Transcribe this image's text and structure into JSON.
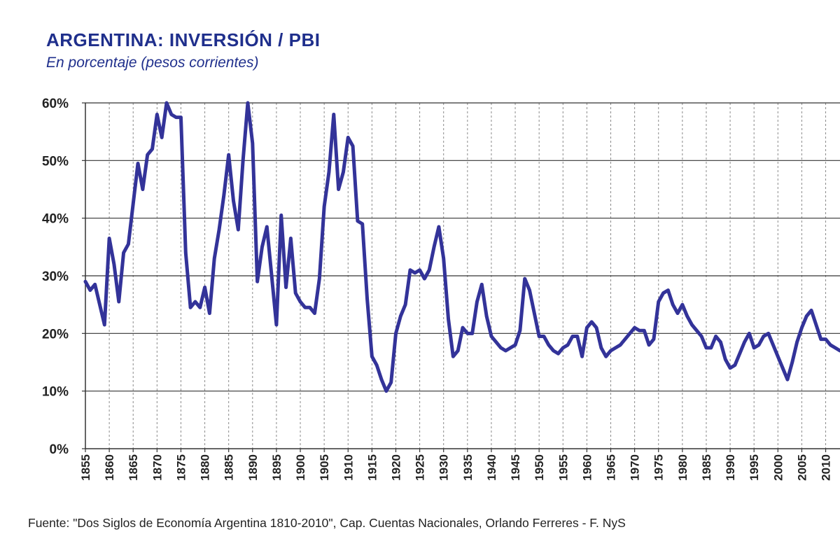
{
  "chart_data": {
    "type": "line",
    "title": "ARGENTINA: INVERSIÓN / PBI",
    "subtitle": "En porcentaje (pesos corrientes)",
    "xlabel": "",
    "ylabel": "",
    "ylim": [
      0,
      60
    ],
    "xlim": [
      1855,
      2013
    ],
    "grid": true,
    "y_ticks": [
      "0%",
      "10%",
      "20%",
      "30%",
      "40%",
      "50%",
      "60%"
    ],
    "x_ticks": [
      "1855",
      "1860",
      "1865",
      "1870",
      "1875",
      "1880",
      "1885",
      "1890",
      "1895",
      "1900",
      "1905",
      "1910",
      "1915",
      "1920",
      "1925",
      "1930",
      "1935",
      "1940",
      "1945",
      "1950",
      "1955",
      "1960",
      "1965",
      "1970",
      "1975",
      "1980",
      "1985",
      "1990",
      "1995",
      "2000",
      "2005",
      "2010"
    ],
    "series": [
      {
        "name": "Inversión / PBI",
        "color": "#333399",
        "x": [
          1855,
          1856,
          1857,
          1858,
          1859,
          1860,
          1861,
          1862,
          1863,
          1864,
          1865,
          1866,
          1867,
          1868,
          1869,
          1870,
          1871,
          1872,
          1873,
          1874,
          1875,
          1876,
          1877,
          1878,
          1879,
          1880,
          1881,
          1882,
          1883,
          1884,
          1885,
          1886,
          1887,
          1888,
          1889,
          1890,
          1891,
          1892,
          1893,
          1894,
          1895,
          1896,
          1897,
          1898,
          1899,
          1900,
          1901,
          1902,
          1903,
          1904,
          1905,
          1906,
          1907,
          1908,
          1909,
          1910,
          1911,
          1912,
          1913,
          1914,
          1915,
          1916,
          1917,
          1918,
          1919,
          1920,
          1921,
          1922,
          1923,
          1924,
          1925,
          1926,
          1927,
          1928,
          1929,
          1930,
          1931,
          1932,
          1933,
          1934,
          1935,
          1936,
          1937,
          1938,
          1939,
          1940,
          1941,
          1942,
          1943,
          1944,
          1945,
          1946,
          1947,
          1948,
          1949,
          1950,
          1951,
          1952,
          1953,
          1954,
          1955,
          1956,
          1957,
          1958,
          1959,
          1960,
          1961,
          1962,
          1963,
          1964,
          1965,
          1966,
          1967,
          1968,
          1969,
          1970,
          1971,
          1972,
          1973,
          1974,
          1975,
          1976,
          1977,
          1978,
          1979,
          1980,
          1981,
          1982,
          1983,
          1984,
          1985,
          1986,
          1987,
          1988,
          1989,
          1990,
          1991,
          1992,
          1993,
          1994,
          1995,
          1996,
          1997,
          1998,
          1999,
          2000,
          2001,
          2002,
          2003,
          2004,
          2005,
          2006,
          2007,
          2008,
          2009,
          2010,
          2011,
          2012,
          2013
        ],
        "values": [
          29.0,
          27.5,
          28.5,
          25.0,
          21.5,
          36.5,
          32.0,
          25.5,
          34.0,
          35.5,
          42.5,
          49.5,
          45.0,
          51.0,
          52.0,
          58.0,
          54.0,
          60.0,
          58.0,
          57.5,
          57.5,
          34.0,
          24.5,
          25.5,
          24.5,
          28.0,
          23.5,
          33.0,
          38.0,
          44.0,
          51.0,
          43.0,
          38.0,
          50.0,
          60.0,
          53.0,
          29.0,
          35.0,
          38.5,
          30.0,
          21.5,
          40.5,
          28.0,
          36.5,
          27.0,
          25.5,
          24.5,
          24.5,
          23.5,
          29.5,
          42.0,
          48.0,
          58.0,
          45.0,
          48.0,
          54.0,
          52.5,
          39.5,
          39.0,
          26.0,
          16.0,
          14.5,
          12.0,
          10.0,
          11.5,
          20.0,
          23.0,
          25.0,
          31.0,
          30.5,
          31.0,
          29.5,
          31.0,
          35.0,
          38.5,
          33.0,
          22.5,
          16.0,
          17.0,
          21.0,
          20.0,
          20.0,
          25.5,
          28.5,
          23.0,
          19.5,
          18.5,
          17.5,
          17.0,
          17.5,
          18.0,
          20.5,
          29.5,
          27.5,
          23.5,
          19.5,
          19.5,
          18.0,
          17.0,
          16.5,
          17.5,
          18.0,
          19.5,
          19.5,
          16.0,
          21.0,
          22.0,
          21.0,
          17.5,
          16.0,
          17.0,
          17.5,
          18.0,
          19.0,
          20.0,
          21.0,
          20.5,
          20.5,
          18.0,
          19.0,
          25.5,
          27.0,
          27.5,
          25.0,
          23.5,
          25.0,
          23.0,
          21.5,
          20.5,
          19.5,
          17.5,
          17.5,
          19.5,
          18.5,
          15.5,
          14.0,
          14.5,
          16.5,
          18.5,
          20.0,
          17.5,
          18.0,
          19.5,
          20.0,
          18.0,
          16.0,
          14.0,
          12.0,
          15.0,
          18.5,
          21.0,
          23.0,
          24.0,
          21.5,
          19.0,
          19.0,
          18.0,
          17.5,
          17.0
        ]
      }
    ]
  },
  "source_note": "Fuente: \"Dos Siglos de Economía Argentina 1810-2010\", Cap. Cuentas Nacionales, Orlando Ferreres - F. NyS"
}
